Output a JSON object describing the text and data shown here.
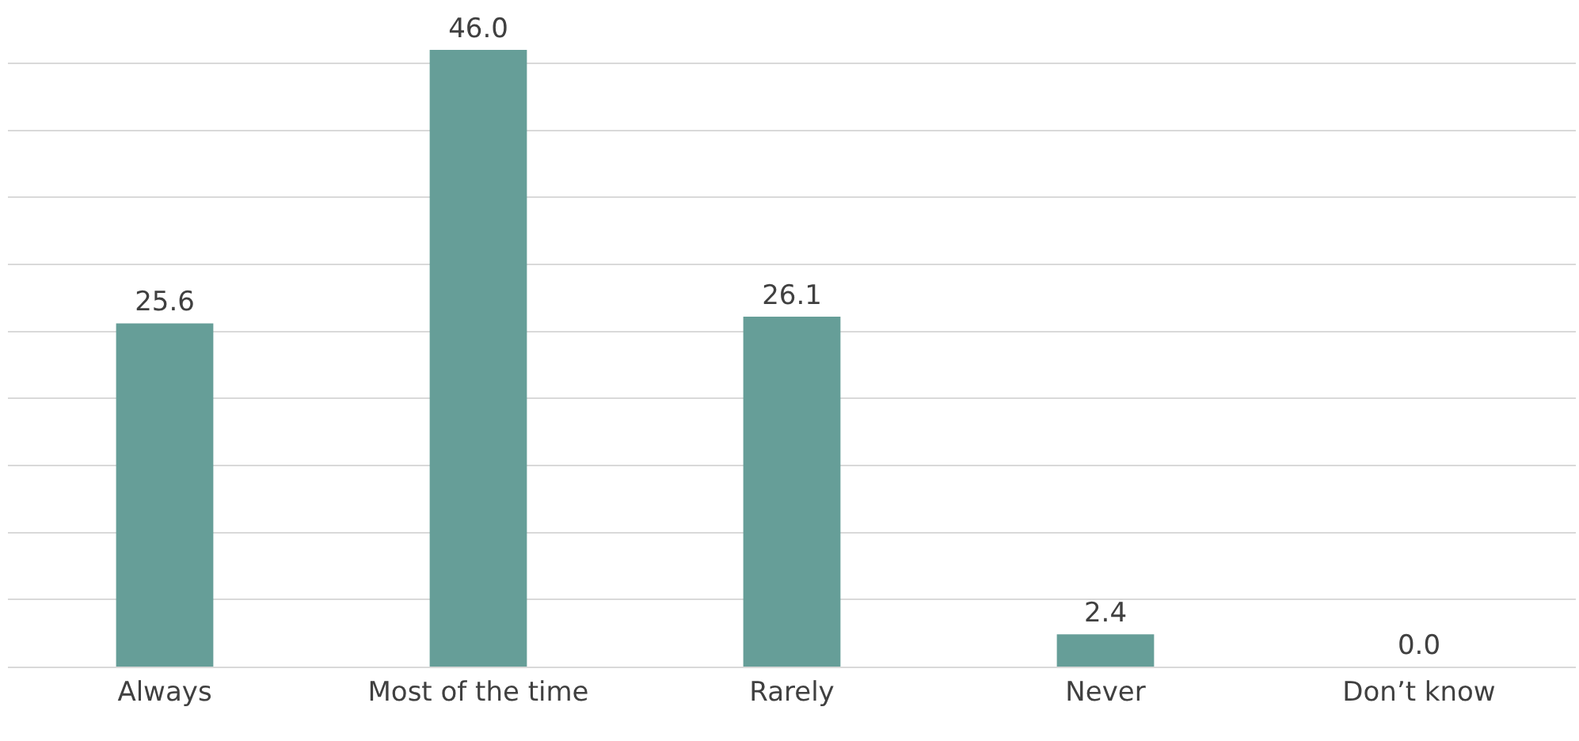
{
  "chart_data": {
    "type": "bar",
    "categories": [
      "Always",
      "Most of the time",
      "Rarely",
      "Never",
      "Don’t know"
    ],
    "values": [
      25.6,
      46.0,
      26.1,
      2.4,
      0.0
    ],
    "color": "#669e98",
    "value_labels": [
      "25.6",
      "46.0",
      "26.1",
      "2.4",
      "0.0"
    ],
    "grid": "y",
    "tick_labels": "x"
  }
}
